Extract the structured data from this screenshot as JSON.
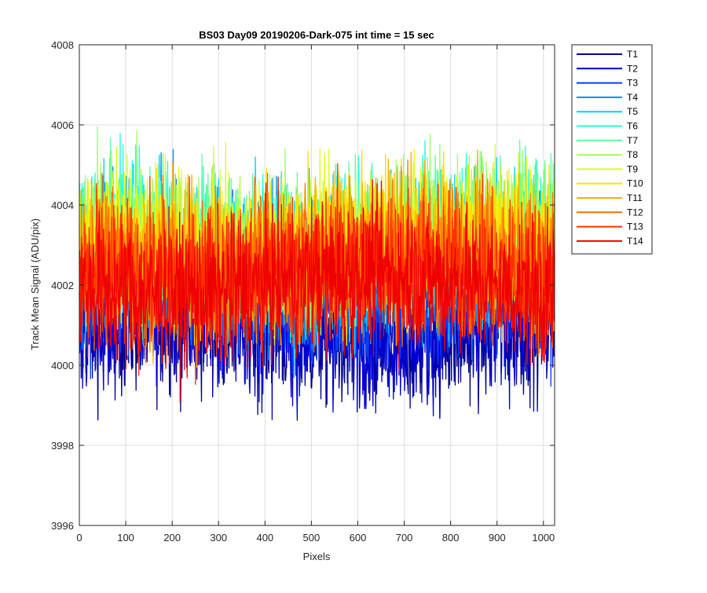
{
  "chart_data": {
    "type": "line",
    "title": "BS03 Day09 20190206-Dark-075 int time = 15 sec",
    "xlabel": "Pixels",
    "ylabel": "Track Mean Signal (ADU/pix)",
    "xlim": [
      0,
      1024
    ],
    "ylim": [
      3996,
      4008
    ],
    "xticks": [
      0,
      100,
      200,
      300,
      400,
      500,
      600,
      700,
      800,
      900,
      1000
    ],
    "yticks": [
      3996,
      3998,
      4000,
      4002,
      4004,
      4006,
      4008
    ],
    "grid": true,
    "legend_position": "outside-top-right",
    "series": [
      {
        "name": "T1",
        "color": "#00008f",
        "mean": 4000.9,
        "noise": 0.9
      },
      {
        "name": "T2",
        "color": "#0000d0",
        "mean": 4001.0,
        "noise": 0.9
      },
      {
        "name": "T3",
        "color": "#0040ff",
        "mean": 4001.9,
        "noise": 0.9
      },
      {
        "name": "T4",
        "color": "#0090ff",
        "mean": 4002.4,
        "noise": 0.95
      },
      {
        "name": "T5",
        "color": "#00d0ff",
        "mean": 4002.8,
        "noise": 0.95
      },
      {
        "name": "T6",
        "color": "#20ffdf",
        "mean": 4003.0,
        "noise": 0.95
      },
      {
        "name": "T7",
        "color": "#60ff9f",
        "mean": 4003.1,
        "noise": 0.95
      },
      {
        "name": "T8",
        "color": "#9fff60",
        "mean": 4003.1,
        "noise": 0.95
      },
      {
        "name": "T9",
        "color": "#dfff20",
        "mean": 4003.0,
        "noise": 0.95
      },
      {
        "name": "T10",
        "color": "#ffe000",
        "mean": 4002.9,
        "noise": 0.95
      },
      {
        "name": "T11",
        "color": "#ffb000",
        "mean": 4002.7,
        "noise": 0.95
      },
      {
        "name": "T12",
        "color": "#ff7000",
        "mean": 4002.6,
        "noise": 0.95
      },
      {
        "name": "T13",
        "color": "#ff3000",
        "mean": 4002.3,
        "noise": 0.95
      },
      {
        "name": "T14",
        "color": "#ef0000",
        "mean": 4002.0,
        "noise": 0.9
      }
    ]
  }
}
